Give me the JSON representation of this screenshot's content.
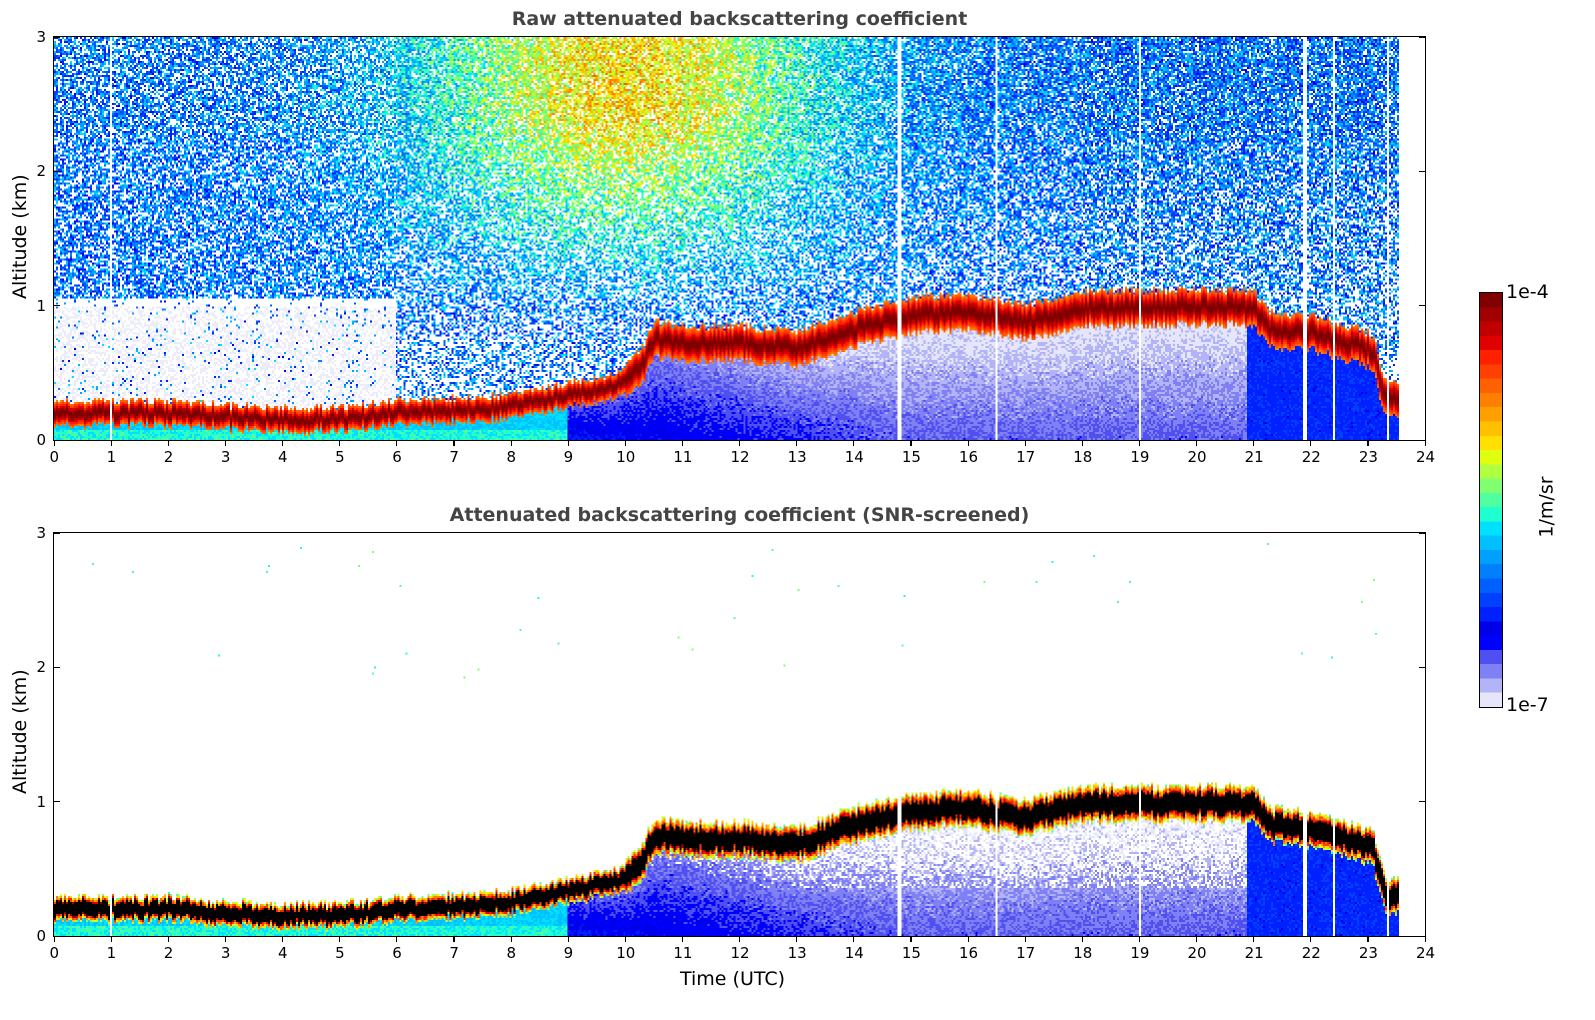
{
  "chart_data": [
    {
      "type": "heatmap",
      "title": "Raw attenuated backscattering coefficient",
      "xlabel": "",
      "ylabel": "Altitude (km)",
      "xlim": [
        0,
        24
      ],
      "ylim": [
        0,
        3
      ],
      "xticks": [
        "0",
        "1",
        "2",
        "3",
        "4",
        "5",
        "6",
        "7",
        "8",
        "9",
        "10",
        "11",
        "12",
        "13",
        "14",
        "15",
        "16",
        "17",
        "18",
        "19",
        "20",
        "21",
        "22",
        "23",
        "24"
      ],
      "yticks": [
        "0",
        "1",
        "2",
        "3"
      ],
      "screened": false,
      "data_end_hour": 23.55,
      "layer_top_km": {
        "hours": [
          0,
          1,
          2,
          3,
          4,
          5,
          6,
          7,
          8,
          9,
          10,
          10.3,
          10.5,
          11,
          12,
          13,
          14,
          15,
          16,
          17,
          18,
          19,
          19.7,
          20.5,
          21,
          21.3,
          22,
          22.8,
          23.1,
          23.3,
          23.55
        ],
        "altitude_km": [
          0.2,
          0.2,
          0.2,
          0.17,
          0.15,
          0.15,
          0.2,
          0.22,
          0.25,
          0.33,
          0.42,
          0.55,
          0.75,
          0.72,
          0.72,
          0.68,
          0.82,
          0.93,
          0.95,
          0.88,
          0.98,
          0.98,
          0.99,
          0.99,
          0.98,
          0.82,
          0.8,
          0.7,
          0.65,
          0.3,
          0.3
        ]
      },
      "gaps_hours": [
        1.0,
        14.8,
        16.5,
        19.0,
        21.9,
        22.4,
        23.35
      ]
    },
    {
      "type": "heatmap",
      "title": "Attenuated backscattering coefficient (SNR-screened)",
      "xlabel": "Time (UTC)",
      "ylabel": "Altitude (km)",
      "xlim": [
        0,
        24
      ],
      "ylim": [
        0,
        3
      ],
      "xticks": [
        "0",
        "1",
        "2",
        "3",
        "4",
        "5",
        "6",
        "7",
        "8",
        "9",
        "10",
        "11",
        "12",
        "13",
        "14",
        "15",
        "16",
        "17",
        "18",
        "19",
        "20",
        "21",
        "22",
        "23",
        "24"
      ],
      "yticks": [
        "0",
        "1",
        "2",
        "3"
      ],
      "screened": true,
      "data_end_hour": 23.55,
      "gaps_hours": [
        1.0,
        14.8,
        16.5,
        19.0,
        21.9,
        22.4,
        23.35
      ]
    }
  ],
  "colorbar": {
    "max_label": "1e-4",
    "min_label": "1e-7",
    "unit": "1/m/sr",
    "scale": "log",
    "colors": [
      "#e6e6fa",
      "#b3b3f8",
      "#8080f5",
      "#5050f2",
      "#0000ff",
      "#0000e8",
      "#0020ff",
      "#0040ff",
      "#0060ff",
      "#0080ff",
      "#00a0ff",
      "#00c0ff",
      "#00e0ff",
      "#20ffd0",
      "#50ffa0",
      "#80ff70",
      "#b0ff40",
      "#e0ff10",
      "#ffe000",
      "#ffc000",
      "#ffa000",
      "#ff8000",
      "#ff6000",
      "#ff4000",
      "#ff2000",
      "#e00000",
      "#c00000",
      "#a00000",
      "#800000"
    ]
  }
}
